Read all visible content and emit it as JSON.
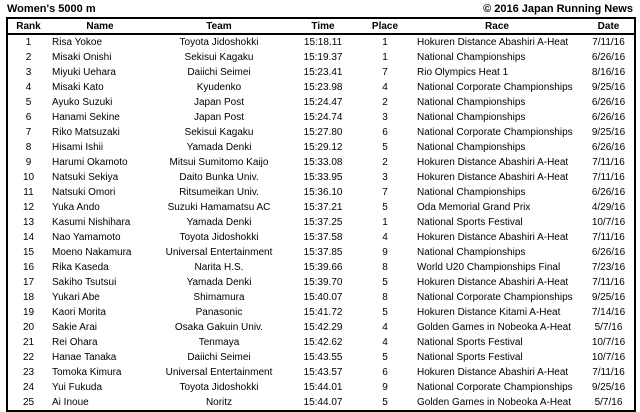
{
  "page": {
    "title": "Women's 5000 m",
    "copyright": "© 2016 Japan Running News"
  },
  "table": {
    "columns": [
      "Rank",
      "Name",
      "Team",
      "Time",
      "Place",
      "Race",
      "Date"
    ],
    "rows": [
      [
        "1",
        "Risa Yokoe",
        "Toyota Jidoshokki",
        "15:18.11",
        "1",
        "Hokuren Distance Abashiri A-Heat",
        "7/11/16"
      ],
      [
        "2",
        "Misaki Onishi",
        "Sekisui Kagaku",
        "15:19.37",
        "1",
        "National Championships",
        "6/26/16"
      ],
      [
        "3",
        "Miyuki Uehara",
        "Daiichi Seimei",
        "15:23.41",
        "7",
        "Rio Olympics Heat 1",
        "8/16/16"
      ],
      [
        "4",
        "Misaki Kato",
        "Kyudenko",
        "15:23.98",
        "4",
        "National Corporate Championships",
        "9/25/16"
      ],
      [
        "5",
        "Ayuko Suzuki",
        "Japan Post",
        "15:24.47",
        "2",
        "National Championships",
        "6/26/16"
      ],
      [
        "6",
        "Hanami Sekine",
        "Japan Post",
        "15:24.74",
        "3",
        "National Championships",
        "6/26/16"
      ],
      [
        "7",
        "Riko Matsuzaki",
        "Sekisui Kagaku",
        "15:27.80",
        "6",
        "National Corporate Championships",
        "9/25/16"
      ],
      [
        "8",
        "Hisami Ishii",
        "Yamada Denki",
        "15:29.12",
        "5",
        "National Championships",
        "6/26/16"
      ],
      [
        "9",
        "Harumi Okamoto",
        "Mitsui Sumitomo Kaijo",
        "15:33.08",
        "2",
        "Hokuren Distance Abashiri A-Heat",
        "7/11/16"
      ],
      [
        "10",
        "Natsuki Sekiya",
        "Daito Bunka Univ.",
        "15:33.95",
        "3",
        "Hokuren Distance Abashiri A-Heat",
        "7/11/16"
      ],
      [
        "11",
        "Natsuki Omori",
        "Ritsumeikan Univ.",
        "15:36.10",
        "7",
        "National Championships",
        "6/26/16"
      ],
      [
        "12",
        "Yuka Ando",
        "Suzuki Hamamatsu AC",
        "15:37.21",
        "5",
        "Oda Memorial Grand Prix",
        "4/29/16"
      ],
      [
        "13",
        "Kasumi Nishihara",
        "Yamada Denki",
        "15:37.25",
        "1",
        "National Sports Festival",
        "10/7/16"
      ],
      [
        "14",
        "Nao Yamamoto",
        "Toyota Jidoshokki",
        "15:37.58",
        "4",
        "Hokuren Distance Abashiri A-Heat",
        "7/11/16"
      ],
      [
        "15",
        "Moeno Nakamura",
        "Universal Entertainment",
        "15:37.85",
        "9",
        "National Championships",
        "6/26/16"
      ],
      [
        "16",
        "Rika Kaseda",
        "Narita H.S.",
        "15:39.66",
        "8",
        "World U20 Championships Final",
        "7/23/16"
      ],
      [
        "17",
        "Sakiho Tsutsui",
        "Yamada Denki",
        "15:39.70",
        "5",
        "Hokuren Distance Abashiri A-Heat",
        "7/11/16"
      ],
      [
        "18",
        "Yukari Abe",
        "Shimamura",
        "15:40.07",
        "8",
        "National Corporate Championships",
        "9/25/16"
      ],
      [
        "19",
        "Kaori Morita",
        "Panasonic",
        "15:41.72",
        "5",
        "Hokuren Distance Kitami A-Heat",
        "7/14/16"
      ],
      [
        "20",
        "Sakie Arai",
        "Osaka Gakuin Univ.",
        "15:42.29",
        "4",
        "Golden Games in Nobeoka A-Heat",
        "5/7/16"
      ],
      [
        "21",
        "Rei Ohara",
        "Tenmaya",
        "15:42.62",
        "4",
        "National Sports Festival",
        "10/7/16"
      ],
      [
        "22",
        "Hanae Tanaka",
        "Daiichi Seimei",
        "15:43.55",
        "5",
        "National Sports Festival",
        "10/7/16"
      ],
      [
        "23",
        "Tomoka Kimura",
        "Universal Entertainment",
        "15:43.57",
        "6",
        "Hokuren Distance Abashiri A-Heat",
        "7/11/16"
      ],
      [
        "24",
        "Yui Fukuda",
        "Toyota Jidoshokki",
        "15:44.01",
        "9",
        "National Corporate Championships",
        "9/25/16"
      ],
      [
        "25",
        "Ai Inoue",
        "Noritz",
        "15:44.07",
        "5",
        "Golden Games in Nobeoka A-Heat",
        "5/7/16"
      ]
    ]
  }
}
